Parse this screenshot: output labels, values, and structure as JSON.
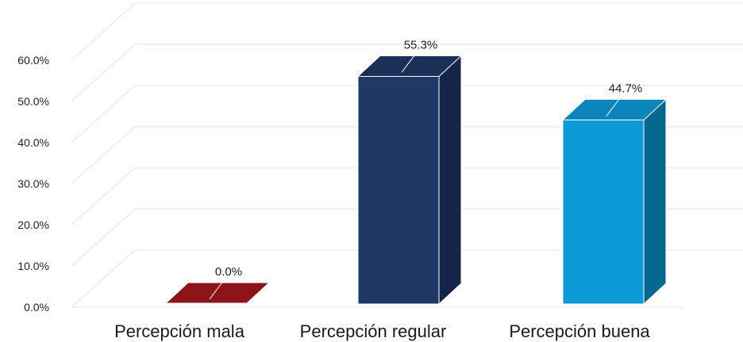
{
  "chart_data": {
    "type": "bar",
    "title": "",
    "xlabel": "",
    "ylabel": "",
    "categories": [
      "Percepción mala",
      "Percepción regular",
      "Percepción buena"
    ],
    "values": [
      0.0,
      55.3,
      44.7
    ],
    "data_labels": [
      "0.0%",
      "55.3%",
      "44.7%"
    ],
    "ylim": [
      0,
      60
    ],
    "y_ticks": [
      0,
      10,
      20,
      30,
      40,
      50,
      60
    ],
    "y_tick_labels": [
      "0.0%",
      "10.0%",
      "20.0%",
      "30.0%",
      "40.0%",
      "50.0%",
      "60.0%"
    ],
    "grid": true,
    "legend": "none",
    "style": "3d-column",
    "bar_colors": [
      {
        "front": "#a0181c",
        "top": "#8c1418",
        "side": "#6e0f12"
      },
      {
        "front": "#1f3864",
        "top": "#1a2f55",
        "side": "#14244a"
      },
      {
        "front": "#0e9ad6",
        "top": "#0b86bb",
        "side": "#06688f"
      }
    ]
  }
}
